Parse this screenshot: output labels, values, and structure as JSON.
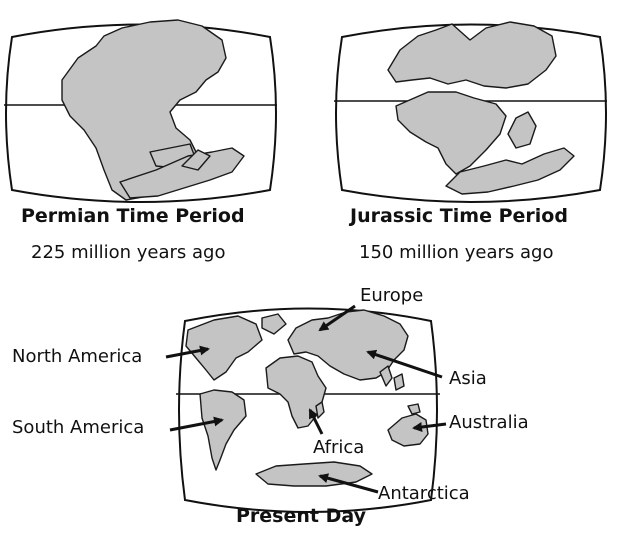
{
  "maps": {
    "permian": {
      "title": "Permian Time Period",
      "subtitle": "225 million years ago"
    },
    "jurassic": {
      "title": "Jurassic Time Period",
      "subtitle": "150 million years ago"
    },
    "present": {
      "title": "Present Day"
    }
  },
  "labels": {
    "europe": "Europe",
    "north_america": "North America",
    "asia": "Asia",
    "south_america": "South America",
    "africa": "Africa",
    "australia": "Australia",
    "antarctica": "Antarctica"
  },
  "colors": {
    "land": "#c4c4c4",
    "outline": "#1a1a1a",
    "background": "#ffffff"
  }
}
